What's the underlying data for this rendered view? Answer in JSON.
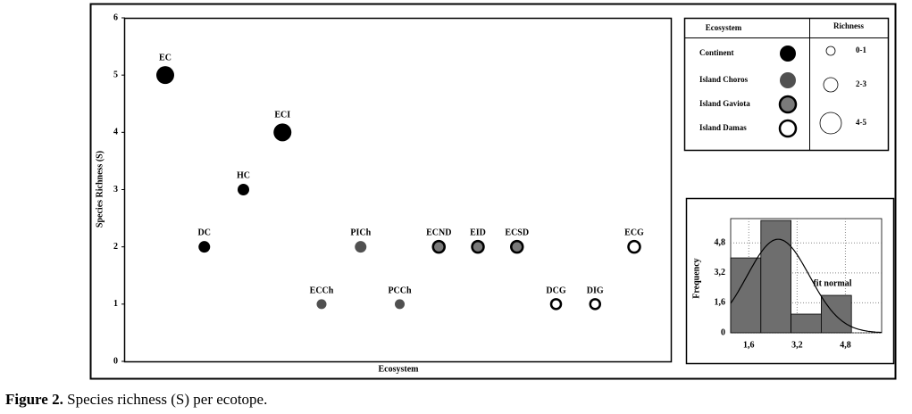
{
  "chart_data": [
    {
      "type": "scatter",
      "x_label": "Ecosystem",
      "y_label": "Species Richness (S)",
      "categories": [
        "EC",
        "DC",
        "HC",
        "ECI",
        "ECCh",
        "PICh",
        "PCCh",
        "ECND",
        "EID",
        "ECSD",
        "DCG",
        "DIG",
        "ECG"
      ],
      "ylim": [
        0,
        6
      ],
      "yticks": [
        0,
        1,
        2,
        3,
        4,
        5,
        6
      ],
      "series": [
        {
          "name": "Continent",
          "color": "#000000",
          "edge_color": "#000000",
          "values": [
            5,
            2,
            3,
            4,
            null,
            null,
            null,
            null,
            null,
            null,
            null,
            null,
            null
          ]
        },
        {
          "name": "Island Choros",
          "color": "#505050",
          "edge_color": "#505050",
          "values": [
            null,
            null,
            null,
            null,
            1,
            2,
            1,
            null,
            null,
            null,
            null,
            null,
            null
          ]
        },
        {
          "name": "Island Gaviota",
          "color": "#7a7a7a",
          "edge_color": "#000000",
          "values": [
            null,
            null,
            null,
            null,
            null,
            null,
            null,
            2,
            2,
            2,
            null,
            null,
            null
          ]
        },
        {
          "name": "Island Damas",
          "color": "#ffffff",
          "edge_color": "#000000",
          "values": [
            null,
            null,
            null,
            null,
            null,
            null,
            null,
            null,
            null,
            null,
            1,
            1,
            2
          ]
        }
      ],
      "legend": {
        "title": "Ecosystem",
        "size_title": "Richness",
        "size_classes": [
          {
            "label": "0-1",
            "range": [
              0,
              1
            ]
          },
          {
            "label": "2-3",
            "range": [
              2,
              3
            ]
          },
          {
            "label": "4-5",
            "range": [
              4,
              5
            ]
          }
        ]
      }
    },
    {
      "type": "histogram",
      "y_label": "Frequency",
      "annotation": "fit normal",
      "fit_curve": "normal",
      "bins": [
        1,
        2,
        3,
        4,
        5
      ],
      "counts": [
        4,
        6,
        1,
        2
      ],
      "color": "#6e6e6e",
      "xlim": [
        1,
        6
      ],
      "xticks": [
        {
          "value": 1.6,
          "label": "1,6"
        },
        {
          "value": 3.2,
          "label": "3,2"
        },
        {
          "value": 4.8,
          "label": "4,8"
        }
      ],
      "ylim": [
        0,
        6.1
      ],
      "yticks": [
        0,
        {
          "value": 1.6,
          "label": "1,6"
        },
        {
          "value": 3.2,
          "label": "3,2"
        },
        {
          "value": 4.8,
          "label": "4,8"
        }
      ],
      "grid": true
    }
  ],
  "caption": {
    "label": "Figure 2.",
    "text": "Species richness (S) per ecotope."
  }
}
